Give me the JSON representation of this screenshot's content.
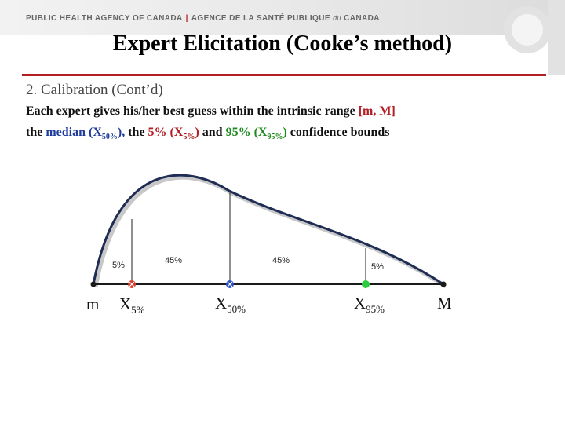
{
  "header": {
    "agency_en": "PUBLIC HEALTH AGENCY OF CANADA",
    "separator": "|",
    "agency_fr_1": "AGENCE DE LA SANTÉ PUBLIQUE",
    "agency_fr_du": "du",
    "agency_fr_2": "CANADA"
  },
  "title": "Expert Elicitation (Cooke’s method)",
  "section": "2. Calibration (Cont’d)",
  "body": {
    "l1_pre": "Each expert gives his/her best guess within the intrinsic range ",
    "l1_range": "[m, M]",
    "l2_pre": "the ",
    "l2_median_word": "median (X",
    "l2_median_sub": "50%",
    "l2_median_close": "),",
    "l2_mid": " the ",
    "l2_p5_word": "5% (X",
    "l2_p5_sub": "5%",
    "l2_p5_close": ")",
    "l2_and": " and ",
    "l2_p95_word": "95% (X",
    "l2_p95_sub": "95%",
    "l2_p95_close": ")",
    "l2_post": " confidence bounds"
  },
  "diagram": {
    "percent_labels": [
      "5%",
      "45%",
      "45%",
      "5%"
    ],
    "axis_labels": {
      "m": "m",
      "x5_main": "X",
      "x5_sub": "5%",
      "x50_main": "X",
      "x50_sub": "50%",
      "x95_main": "X",
      "x95_sub": "95%",
      "M": "M"
    },
    "colors": {
      "curve": "#1f2d55",
      "x5_marker": "#d93a2b",
      "x50_marker": "#2b4fc7",
      "x95_marker": "#2ecc40"
    }
  }
}
